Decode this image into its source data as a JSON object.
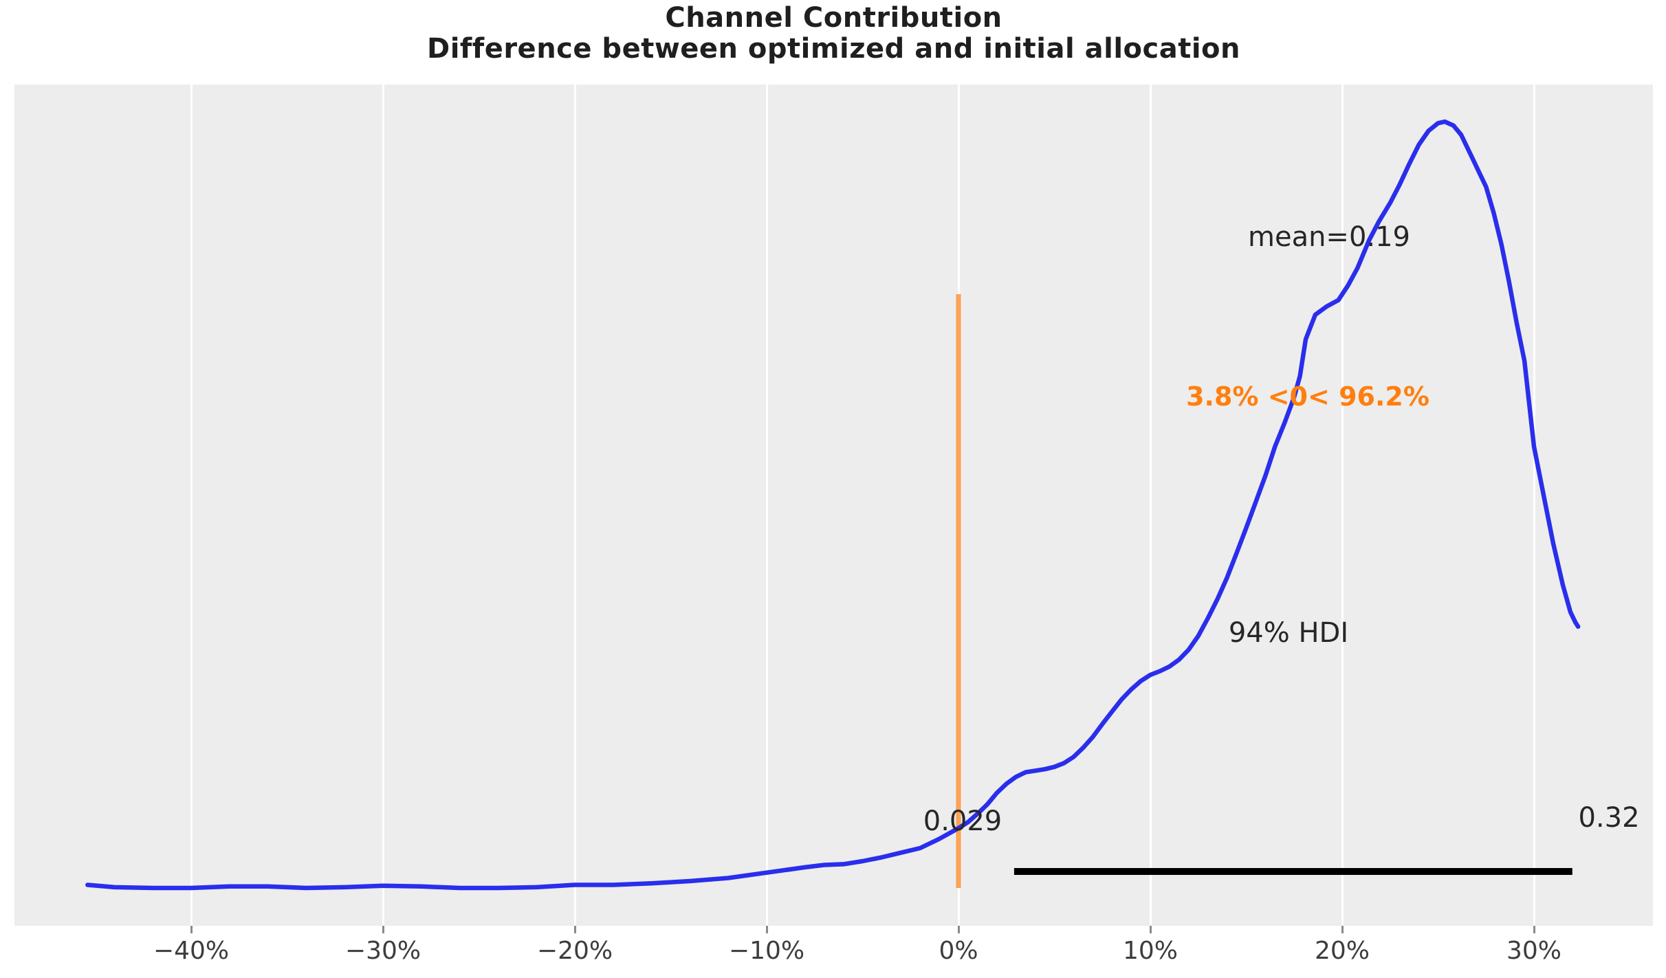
{
  "title": {
    "line1": "Channel Contribution",
    "line2": "Difference between optimized and initial allocation"
  },
  "annotations": {
    "mean_label": "mean=0.19",
    "ref_val_label": "3.8% <0< 96.2%",
    "hdi_label": "94% HDI",
    "hdi_lower_label": "0.029",
    "hdi_upper_label": "0.32"
  },
  "x_axis": {
    "tick_labels": [
      "−40%",
      "−30%",
      "−20%",
      "−10%",
      "0%",
      "10%",
      "20%",
      "30%"
    ],
    "tick_values_pct": [
      -40,
      -30,
      -20,
      -10,
      0,
      10,
      20,
      30
    ]
  },
  "colors": {
    "plot_background": "#ededed",
    "gridline": "#ffffff",
    "kde_line": "#2a2eec",
    "ref_line": "rgba(255,127,14,0.7)",
    "ref_text": "#ff7f0e",
    "hdi_bar": "#000000",
    "text": "#262626",
    "tick_label": "#3d3d3d"
  },
  "chart_data": {
    "type": "line",
    "subtype": "kde-posterior",
    "title": "Channel Contribution",
    "subtitle": "Difference between optimized and initial allocation",
    "xlabel": "",
    "ylabel": "",
    "x_unit": "percent",
    "x_range_pct": [
      -49.2,
      36.2
    ],
    "grid": true,
    "stats": {
      "mean": 0.19,
      "hdi_probability": "94%",
      "hdi_lower": 0.029,
      "hdi_upper": 0.32,
      "ref_value": 0,
      "prob_below_ref": "3.8%",
      "prob_above_ref": "96.2%"
    },
    "kde_points_pct_density": [
      [
        -45.4,
        0.004
      ],
      [
        -44,
        0.001
      ],
      [
        -42,
        0
      ],
      [
        -40,
        0
      ],
      [
        -38,
        0.002
      ],
      [
        -36,
        0.002
      ],
      [
        -34,
        0
      ],
      [
        -32,
        0.001
      ],
      [
        -30,
        0.003
      ],
      [
        -28,
        0.002
      ],
      [
        -26,
        0
      ],
      [
        -24,
        0
      ],
      [
        -22,
        0.001
      ],
      [
        -20,
        0.004
      ],
      [
        -18,
        0.004
      ],
      [
        -16,
        0.006
      ],
      [
        -14,
        0.009
      ],
      [
        -12,
        0.013
      ],
      [
        -10,
        0.02
      ],
      [
        -8,
        0.027
      ],
      [
        -7,
        0.03
      ],
      [
        -6,
        0.031
      ],
      [
        -5,
        0.035
      ],
      [
        -4,
        0.04
      ],
      [
        -3,
        0.046
      ],
      [
        -2,
        0.052
      ],
      [
        -1,
        0.064
      ],
      [
        0,
        0.078
      ],
      [
        0.5,
        0.086
      ],
      [
        1,
        0.097
      ],
      [
        1.5,
        0.109
      ],
      [
        2,
        0.124
      ],
      [
        2.5,
        0.136
      ],
      [
        3,
        0.145
      ],
      [
        3.5,
        0.151
      ],
      [
        4,
        0.153
      ],
      [
        4.5,
        0.155
      ],
      [
        5,
        0.158
      ],
      [
        5.5,
        0.163
      ],
      [
        6,
        0.171
      ],
      [
        6.5,
        0.183
      ],
      [
        7,
        0.197
      ],
      [
        7.5,
        0.214
      ],
      [
        8,
        0.23
      ],
      [
        8.5,
        0.246
      ],
      [
        9,
        0.259
      ],
      [
        9.5,
        0.27
      ],
      [
        10,
        0.278
      ],
      [
        10.5,
        0.283
      ],
      [
        11,
        0.289
      ],
      [
        11.5,
        0.298
      ],
      [
        12,
        0.311
      ],
      [
        12.5,
        0.329
      ],
      [
        13,
        0.352
      ],
      [
        13.5,
        0.377
      ],
      [
        14,
        0.405
      ],
      [
        14.5,
        0.437
      ],
      [
        15,
        0.47
      ],
      [
        15.5,
        0.504
      ],
      [
        16,
        0.538
      ],
      [
        16.5,
        0.576
      ],
      [
        17,
        0.607
      ],
      [
        17.5,
        0.641
      ],
      [
        17.8,
        0.668
      ],
      [
        18.1,
        0.716
      ],
      [
        18.6,
        0.748
      ],
      [
        19.2,
        0.759
      ],
      [
        19.8,
        0.767
      ],
      [
        20.3,
        0.786
      ],
      [
        20.8,
        0.809
      ],
      [
        21.4,
        0.845
      ],
      [
        21.9,
        0.869
      ],
      [
        22.5,
        0.894
      ],
      [
        23,
        0.918
      ],
      [
        23.5,
        0.945
      ],
      [
        24,
        0.97
      ],
      [
        24.5,
        0.988
      ],
      [
        25,
        0.998
      ],
      [
        25.35,
        1.0
      ],
      [
        25.8,
        0.995
      ],
      [
        26.2,
        0.983
      ],
      [
        26.7,
        0.957
      ],
      [
        27.1,
        0.936
      ],
      [
        27.5,
        0.915
      ],
      [
        27.9,
        0.881
      ],
      [
        28.3,
        0.84
      ],
      [
        28.7,
        0.791
      ],
      [
        29.1,
        0.737
      ],
      [
        29.5,
        0.688
      ],
      [
        30,
        0.576
      ],
      [
        30.5,
        0.513
      ],
      [
        31,
        0.45
      ],
      [
        31.5,
        0.396
      ],
      [
        31.9,
        0.36
      ],
      [
        32.15,
        0.347
      ],
      [
        32.3,
        0.341
      ]
    ]
  }
}
